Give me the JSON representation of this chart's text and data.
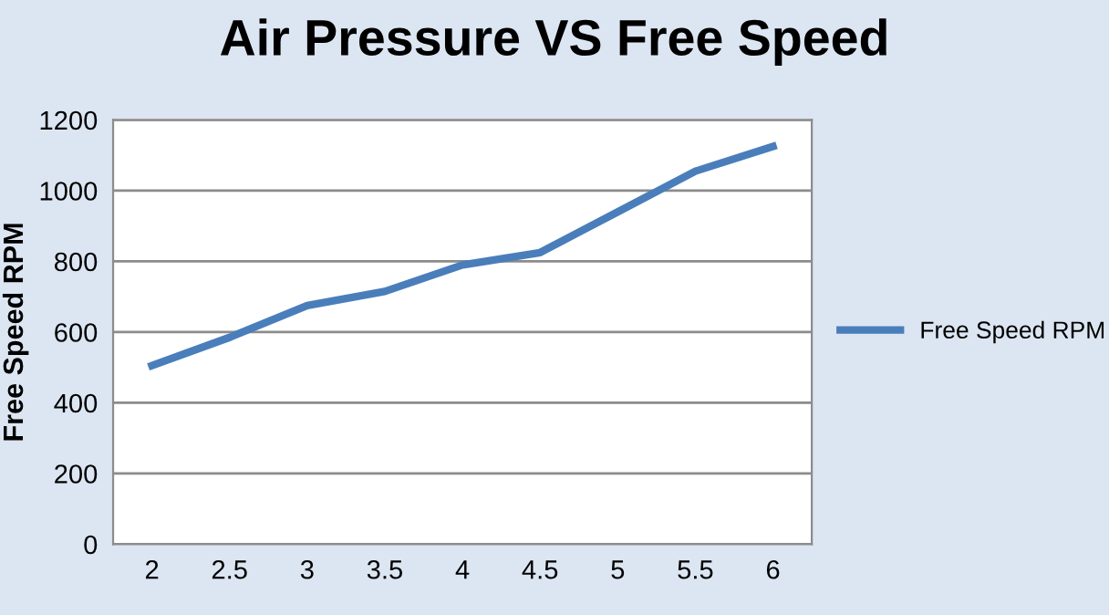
{
  "chart_data": {
    "type": "line",
    "title": "Air Pressure VS Free Speed",
    "ylabel": "Free Speed RPM",
    "categories": [
      "2",
      "2.5",
      "3",
      "3.5",
      "4",
      "4.5",
      "5",
      "5.5",
      "6"
    ],
    "series": [
      {
        "name": "Free Speed RPM",
        "color": "#4a7ebb",
        "values": [
          505,
          585,
          675,
          715,
          790,
          825,
          940,
          1055,
          1125
        ]
      }
    ],
    "ylim": [
      0,
      1200
    ],
    "yticks": [
      0,
      200,
      400,
      600,
      800,
      1000,
      1200
    ],
    "grid": "y",
    "legend": "right",
    "marker": "none",
    "line_style": "solid"
  }
}
